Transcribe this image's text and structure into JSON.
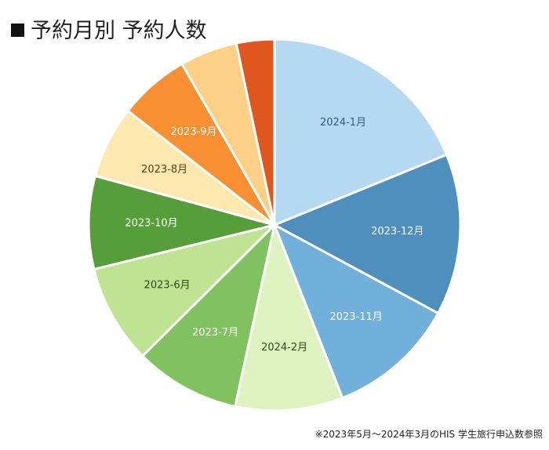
{
  "chart_data": {
    "type": "pie",
    "title": "予約月別 予約人数",
    "start": "top",
    "direction": "clockwise",
    "slices": [
      {
        "label": "2024-1月",
        "value": 17.7,
        "color": "#b6d9f2",
        "label_color": "#2b5f8c"
      },
      {
        "label": "2023-12月",
        "value": 13.2,
        "color": "#4e8fbd",
        "label_color": "#ffffff"
      },
      {
        "label": "2023-11月",
        "value": 10.5,
        "color": "#72b0dc",
        "label_color": "#ffffff"
      },
      {
        "label": "2024-2月",
        "value": 8.8,
        "color": "#dff3c1",
        "label_color": "#2e4a1a"
      },
      {
        "label": "2023-7月",
        "value": 8.6,
        "color": "#80c25f",
        "label_color": "#ffffff"
      },
      {
        "label": "2023-6月",
        "value": 8.1,
        "color": "#bde393",
        "label_color": "#2e4a1a"
      },
      {
        "label": "2023-10月",
        "value": 7.6,
        "color": "#559e3a",
        "label_color": "#ffffff"
      },
      {
        "label": "2023-8月",
        "value": 5.9,
        "color": "#fde8b0",
        "label_color": "#5a3a10"
      },
      {
        "label": "2023-9月",
        "value": 5.8,
        "color": "#f98f33",
        "label_color": "#ffffff"
      },
      {
        "label": "",
        "value": 4.7,
        "color": "#fdcf87",
        "label_color": "#5a3a10"
      },
      {
        "label": "",
        "value": 3.1,
        "color": "#e0561f",
        "label_color": "#ffffff"
      }
    ],
    "footnote": "※2023年5月〜2024年3月のHIS 学生旅行申込数参照"
  }
}
